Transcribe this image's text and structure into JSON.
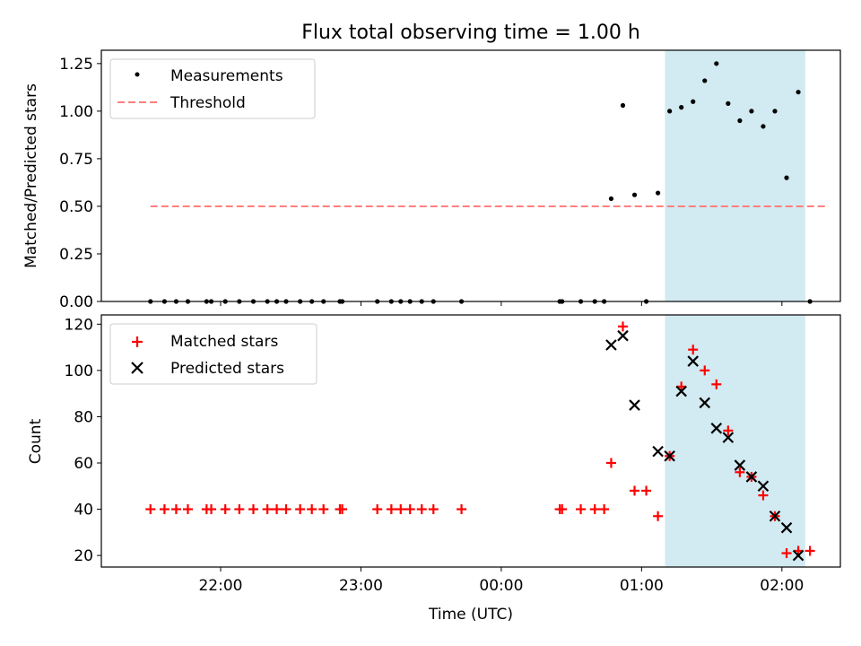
{
  "title": "Flux total observing time = 1.00 h",
  "shaded_region": {
    "x_start": "01:10",
    "x_end": "02:10",
    "color": "#add8e6"
  },
  "chart_data": [
    {
      "type": "scatter",
      "ylabel": "Matched/Predicted stars",
      "ylim": [
        0,
        1.32
      ],
      "yticks": [
        "0.00",
        "0.25",
        "0.50",
        "0.75",
        "1.00",
        "1.25"
      ],
      "ytick_values": [
        0,
        0.25,
        0.5,
        0.75,
        1.0,
        1.25
      ],
      "legend_position": "upper-left",
      "legend": [
        {
          "label": "Measurements",
          "marker": "dot",
          "color": "#000000"
        },
        {
          "label": "Threshold",
          "marker": "dashed-line",
          "color": "#ff7f7f"
        }
      ],
      "threshold": {
        "value": 0.5,
        "x_range": [
          "21:30",
          "02:20"
        ]
      },
      "points": [
        {
          "x": "21:30",
          "y": 0
        },
        {
          "x": "21:36",
          "y": 0
        },
        {
          "x": "21:41",
          "y": 0
        },
        {
          "x": "21:46",
          "y": 0
        },
        {
          "x": "21:54",
          "y": 0
        },
        {
          "x": "21:56",
          "y": 0
        },
        {
          "x": "22:02",
          "y": 0
        },
        {
          "x": "22:08",
          "y": 0
        },
        {
          "x": "22:14",
          "y": 0
        },
        {
          "x": "22:20",
          "y": 0
        },
        {
          "x": "22:24",
          "y": 0
        },
        {
          "x": "22:28",
          "y": 0
        },
        {
          "x": "22:34",
          "y": 0
        },
        {
          "x": "22:39",
          "y": 0
        },
        {
          "x": "22:44",
          "y": 0
        },
        {
          "x": "22:51",
          "y": 0
        },
        {
          "x": "22:52",
          "y": 0
        },
        {
          "x": "23:07",
          "y": 0
        },
        {
          "x": "23:13",
          "y": 0
        },
        {
          "x": "23:17",
          "y": 0
        },
        {
          "x": "23:21",
          "y": 0
        },
        {
          "x": "23:26",
          "y": 0
        },
        {
          "x": "23:31",
          "y": 0
        },
        {
          "x": "23:43",
          "y": 0
        },
        {
          "x": "00:25",
          "y": 0
        },
        {
          "x": "00:26",
          "y": 0
        },
        {
          "x": "00:34",
          "y": 0
        },
        {
          "x": "00:40",
          "y": 0
        },
        {
          "x": "00:44",
          "y": 0
        },
        {
          "x": "00:47",
          "y": 0.54
        },
        {
          "x": "00:52",
          "y": 1.03
        },
        {
          "x": "00:57",
          "y": 0.56
        },
        {
          "x": "01:02",
          "y": 0
        },
        {
          "x": "01:07",
          "y": 0.57
        },
        {
          "x": "01:12",
          "y": 1.0
        },
        {
          "x": "01:17",
          "y": 1.02
        },
        {
          "x": "01:22",
          "y": 1.05
        },
        {
          "x": "01:27",
          "y": 1.16
        },
        {
          "x": "01:32",
          "y": 1.25
        },
        {
          "x": "01:37",
          "y": 1.04
        },
        {
          "x": "01:42",
          "y": 0.95
        },
        {
          "x": "01:47",
          "y": 1.0
        },
        {
          "x": "01:52",
          "y": 0.92
        },
        {
          "x": "01:57",
          "y": 1.0
        },
        {
          "x": "02:02",
          "y": 0.65
        },
        {
          "x": "02:07",
          "y": 1.1
        },
        {
          "x": "02:12",
          "y": 0
        }
      ]
    },
    {
      "type": "scatter",
      "ylabel": "Count",
      "xlabel": "Time (UTC)",
      "ylim": [
        15,
        124
      ],
      "yticks": [
        "20",
        "40",
        "60",
        "80",
        "100",
        "120"
      ],
      "ytick_values": [
        20,
        40,
        60,
        80,
        100,
        120
      ],
      "xlim": [
        "21:09",
        "02:25"
      ],
      "xticks": [
        "22:00",
        "23:00",
        "00:00",
        "01:00",
        "02:00"
      ],
      "legend_position": "upper-left",
      "legend": [
        {
          "label": "Matched stars",
          "marker": "plus",
          "color": "#ff0000"
        },
        {
          "label": "Predicted stars",
          "marker": "x",
          "color": "#000000"
        }
      ],
      "series": [
        {
          "name": "Matched stars",
          "points": [
            {
              "x": "21:30",
              "y": 40
            },
            {
              "x": "21:36",
              "y": 40
            },
            {
              "x": "21:41",
              "y": 40
            },
            {
              "x": "21:46",
              "y": 40
            },
            {
              "x": "21:54",
              "y": 40
            },
            {
              "x": "21:56",
              "y": 40
            },
            {
              "x": "22:02",
              "y": 40
            },
            {
              "x": "22:08",
              "y": 40
            },
            {
              "x": "22:14",
              "y": 40
            },
            {
              "x": "22:20",
              "y": 40
            },
            {
              "x": "22:24",
              "y": 40
            },
            {
              "x": "22:28",
              "y": 40
            },
            {
              "x": "22:34",
              "y": 40
            },
            {
              "x": "22:39",
              "y": 40
            },
            {
              "x": "22:44",
              "y": 40
            },
            {
              "x": "22:51",
              "y": 40
            },
            {
              "x": "22:52",
              "y": 40
            },
            {
              "x": "23:07",
              "y": 40
            },
            {
              "x": "23:13",
              "y": 40
            },
            {
              "x": "23:17",
              "y": 40
            },
            {
              "x": "23:21",
              "y": 40
            },
            {
              "x": "23:26",
              "y": 40
            },
            {
              "x": "23:31",
              "y": 40
            },
            {
              "x": "23:43",
              "y": 40
            },
            {
              "x": "00:25",
              "y": 40
            },
            {
              "x": "00:26",
              "y": 40
            },
            {
              "x": "00:34",
              "y": 40
            },
            {
              "x": "00:40",
              "y": 40
            },
            {
              "x": "00:44",
              "y": 40
            },
            {
              "x": "00:47",
              "y": 60
            },
            {
              "x": "00:52",
              "y": 119
            },
            {
              "x": "00:57",
              "y": 48
            },
            {
              "x": "01:02",
              "y": 48
            },
            {
              "x": "01:07",
              "y": 37
            },
            {
              "x": "01:12",
              "y": 63
            },
            {
              "x": "01:17",
              "y": 93
            },
            {
              "x": "01:22",
              "y": 109
            },
            {
              "x": "01:27",
              "y": 100
            },
            {
              "x": "01:32",
              "y": 94
            },
            {
              "x": "01:37",
              "y": 74
            },
            {
              "x": "01:42",
              "y": 56
            },
            {
              "x": "01:47",
              "y": 54
            },
            {
              "x": "01:52",
              "y": 46
            },
            {
              "x": "01:57",
              "y": 37
            },
            {
              "x": "02:02",
              "y": 21
            },
            {
              "x": "02:07",
              "y": 22
            },
            {
              "x": "02:12",
              "y": 22
            }
          ]
        },
        {
          "name": "Predicted stars",
          "points": [
            {
              "x": "00:47",
              "y": 111
            },
            {
              "x": "00:52",
              "y": 115
            },
            {
              "x": "00:57",
              "y": 85
            },
            {
              "x": "01:07",
              "y": 65
            },
            {
              "x": "01:12",
              "y": 63
            },
            {
              "x": "01:17",
              "y": 91
            },
            {
              "x": "01:22",
              "y": 104
            },
            {
              "x": "01:27",
              "y": 86
            },
            {
              "x": "01:32",
              "y": 75
            },
            {
              "x": "01:37",
              "y": 71
            },
            {
              "x": "01:42",
              "y": 59
            },
            {
              "x": "01:47",
              "y": 54
            },
            {
              "x": "01:52",
              "y": 50
            },
            {
              "x": "01:57",
              "y": 37
            },
            {
              "x": "02:02",
              "y": 32
            },
            {
              "x": "02:07",
              "y": 20
            }
          ]
        }
      ]
    }
  ]
}
